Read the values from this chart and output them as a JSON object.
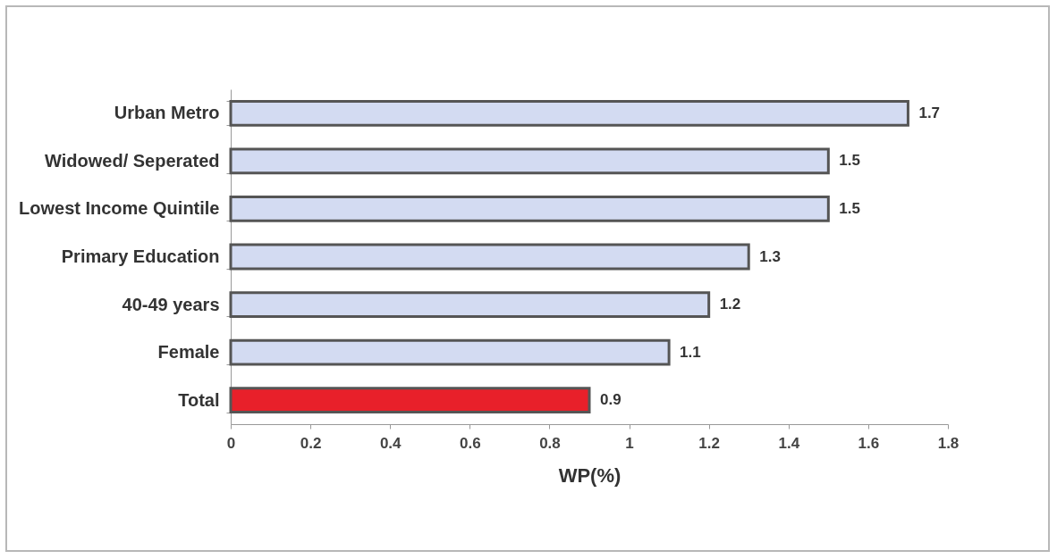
{
  "chart_data": {
    "type": "bar",
    "orientation": "horizontal",
    "xlabel": "WP(%)",
    "categories": [
      "Urban Metro",
      "Widowed/ Seperated",
      "Lowest Income Quintile",
      "Primary Education",
      "40-49 years",
      "Female",
      "Total"
    ],
    "values": [
      1.7,
      1.5,
      1.5,
      1.3,
      1.2,
      1.1,
      0.9
    ],
    "colors": [
      "#d3dbf2",
      "#d3dbf2",
      "#d3dbf2",
      "#d3dbf2",
      "#d3dbf2",
      "#d3dbf2",
      "#e8202a"
    ],
    "xlim": [
      0,
      1.8
    ],
    "xticks": [
      0,
      0.2,
      0.4,
      0.6,
      0.8,
      1,
      1.2,
      1.4,
      1.6,
      1.8
    ],
    "data_labels": true,
    "grid": false
  }
}
